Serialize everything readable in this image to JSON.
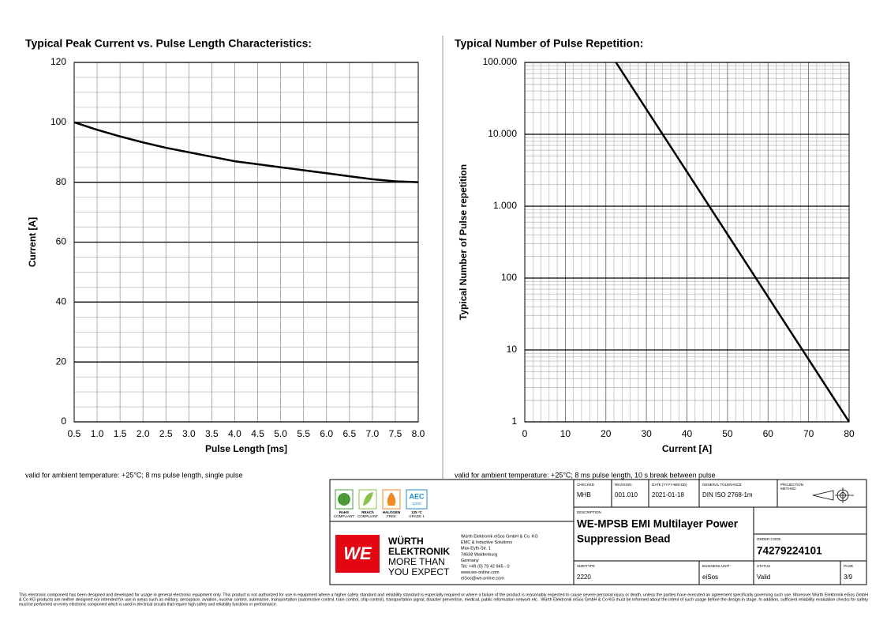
{
  "chart_data": [
    {
      "type": "line",
      "title": "Typical Peak Current vs. Pulse Length Characteristics:",
      "xlabel": "Pulse Length [ms]",
      "ylabel": "Current [A]",
      "x": [
        0.5,
        1.0,
        1.5,
        2.0,
        2.5,
        3.0,
        3.5,
        4.0,
        4.5,
        5.0,
        5.5,
        6.0,
        6.5,
        7.0,
        7.5,
        8.0
      ],
      "values": [
        100,
        97.5,
        95.3,
        93.3,
        91.5,
        90,
        88.5,
        87,
        86,
        85,
        84,
        83,
        82,
        81,
        80.3,
        80
      ],
      "color": "#000000",
      "xlim": [
        0.5,
        8.0
      ],
      "xticks": [
        0.5,
        {
          "value": 1,
          "label": "1.0"
        },
        1.5,
        {
          "value": 2,
          "label": "2.0"
        },
        2.5,
        {
          "value": 3,
          "label": "3.0"
        },
        3.5,
        {
          "value": 4,
          "label": "4.0"
        },
        4.5,
        {
          "value": 5,
          "label": "5.0"
        },
        5.5,
        {
          "value": 6,
          "label": "6.0"
        },
        6.5,
        {
          "value": 7,
          "label": "7.0"
        },
        7.5,
        {
          "value": 8,
          "label": "8.0"
        }
      ],
      "ylim": [
        0,
        120
      ],
      "yticks": [
        0,
        20,
        40,
        60,
        80,
        100,
        120
      ],
      "grid": true,
      "log_y": false,
      "note": "valid for ambient temperature: +25°C; 8 ms pulse length, single pulse"
    },
    {
      "type": "line",
      "title": "Typical Number of Pulse Repetition:",
      "xlabel": "Current [A]",
      "ylabel": "Typical Number of Pulse repetition",
      "x": [
        22.5,
        80
      ],
      "values": [
        100000,
        1
      ],
      "color": "#000000",
      "xlim": [
        0,
        80
      ],
      "xticks": [
        0,
        10,
        20,
        30,
        40,
        50,
        60,
        70,
        80
      ],
      "ylim": [
        1,
        100000
      ],
      "yticks": [
        1,
        10,
        100,
        {
          "value": 1000,
          "label": "1.000"
        },
        {
          "value": 10000,
          "label": "10.000"
        },
        {
          "value": 100000,
          "label": "100.000"
        }
      ],
      "grid": true,
      "log_y": true,
      "note": "valid for ambient temperature: +25°C; 8 ms pulse length, 10 s break between pulse"
    }
  ],
  "title_block": {
    "badges": [
      [
        "RoHS",
        "COMPLIANT"
      ],
      [
        "REACh",
        "COMPLIANT"
      ],
      [
        "HALOGEN",
        "FREE"
      ],
      [
        "AEC",
        "Q200",
        "125 °C",
        "GRADE 1"
      ]
    ],
    "logo": {
      "mark": "WE",
      "lines": [
        "WÜRTH",
        "ELEKTRONIK",
        "MORE THAN",
        "YOU EXPECT"
      ]
    },
    "address": [
      "Würth Elektronik eiSos GmbH & Co. KG",
      "EMC & Inductive Solutions",
      "Max-Eyth-Str. 1",
      "74638 Waldenburg",
      "Germany",
      "Tel. +49 (0) 79 42 945 - 0",
      "www.we-online.com",
      "eiSos@we-online.com"
    ],
    "checked": {
      "label": "CHECKED",
      "value": "MHB"
    },
    "revision": {
      "label": "REVISION",
      "value": "001.010"
    },
    "date": {
      "label": "DATE (YYYY-MM-DD)",
      "value": "2021-01-18"
    },
    "tolerance": {
      "label": "GENERAL TOLERANCE",
      "value": "DIN ISO 2768-1m"
    },
    "projection": {
      "label": [
        "PROJECTION",
        "METHOD"
      ]
    },
    "description": {
      "label": "DESCRIPTION",
      "lines": [
        "WE-MPSB EMI Multilayer Power",
        "Suppression Bead"
      ]
    },
    "order_code": {
      "label": "ORDER CODE",
      "value": "74279224101"
    },
    "size": {
      "label": "SIZE/TYPE",
      "value": "2220"
    },
    "business_unit": {
      "label": "BUSINESS UNIT",
      "value": "eiSos"
    },
    "status": {
      "label": "STATUS",
      "value": "Valid"
    },
    "page": {
      "label": "PAGE",
      "value": "3/9"
    }
  },
  "disclaimer": [
    "This electronic component has been designed and developed for usage in general electronic equipment only. This product is not authorized for use in equipment where a higher safety standard and reliability standard is especially required or where a failure of the product is reasonably expected to cause severe personal injury or death, unless the parties have executed an agreement specifically governing such use. Moreover Würth Elektronik eiSos GmbH",
    "& Co KG products are neither designed nor intended for use in areas such as military, aerospace, aviation, nuclear control, submarine, transportation (automotive control, train control, ship control), transportation signal, disaster prevention, medical, public information network etc.. Würth Elektronik eiSos GmbH & Co KG must be informed about the intent of such usage before the design-in stage. In addition, sufficient reliability evaluation checks for safety",
    "must be performed on every electronic component which is used in electrical circuits that require high safety and reliability functions or performance."
  ]
}
